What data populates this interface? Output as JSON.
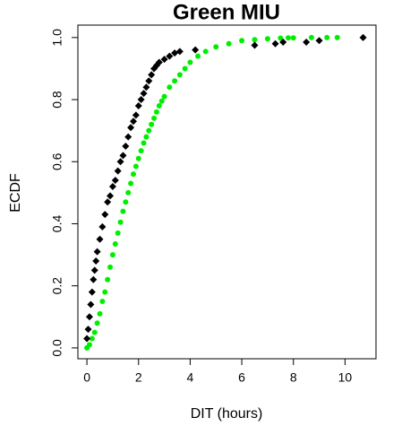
{
  "chart_data": {
    "type": "scatter",
    "title": "Green MIU",
    "xlabel": "DIT (hours)",
    "ylabel": "ECDF",
    "xlim": [
      -0.35,
      11.2
    ],
    "ylim": [
      -0.035,
      1.04
    ],
    "xticks": [
      0,
      2,
      4,
      6,
      8,
      10
    ],
    "yticks": [
      {
        "value": 0,
        "label": "0.0"
      },
      0.2,
      0.4,
      0.6,
      0.8,
      {
        "value": 1,
        "label": "1.0"
      }
    ],
    "series": [
      {
        "color": "#00ee00",
        "marker": "circle",
        "x": [
          0,
          0.1,
          0.2,
          0.3,
          0.4,
          0.5,
          0.6,
          0.7,
          0.8,
          0.9,
          1.0,
          1.1,
          1.2,
          1.3,
          1.4,
          1.5,
          1.6,
          1.7,
          1.8,
          1.9,
          2.0,
          2.1,
          2.2,
          2.3,
          2.4,
          2.5,
          2.6,
          2.7,
          2.8,
          2.9,
          3.0,
          3.2,
          3.4,
          3.6,
          3.8,
          4.0,
          4.3,
          4.6,
          5.0,
          5.5,
          6.0,
          6.5,
          7.0,
          7.5,
          7.8,
          8.0,
          8.7,
          9.3,
          9.7
        ],
        "values": [
          0,
          0.01,
          0.03,
          0.05,
          0.08,
          0.11,
          0.15,
          0.18,
          0.22,
          0.26,
          0.3,
          0.335,
          0.37,
          0.405,
          0.44,
          0.47,
          0.5,
          0.53,
          0.56,
          0.585,
          0.61,
          0.635,
          0.66,
          0.68,
          0.7,
          0.72,
          0.74,
          0.76,
          0.78,
          0.795,
          0.81,
          0.84,
          0.86,
          0.88,
          0.9,
          0.92,
          0.94,
          0.955,
          0.97,
          0.98,
          0.99,
          0.993,
          0.996,
          0.998,
          0.999,
          0.999,
          1.0,
          1.0,
          1.0
        ]
      },
      {
        "color": "#000000",
        "marker": "diamond",
        "x": [
          0.0,
          0.05,
          0.1,
          0.15,
          0.2,
          0.25,
          0.3,
          0.35,
          0.4,
          0.5,
          0.6,
          0.7,
          0.8,
          0.9,
          1.0,
          1.1,
          1.2,
          1.3,
          1.4,
          1.5,
          1.6,
          1.7,
          1.8,
          1.9,
          2.0,
          2.1,
          2.2,
          2.3,
          2.4,
          2.5,
          2.6,
          2.7,
          2.8,
          3.0,
          3.2,
          3.4,
          3.6,
          4.2,
          6.5,
          7.3,
          7.6,
          8.5,
          9.0,
          10.7
        ],
        "values": [
          0.03,
          0.06,
          0.1,
          0.14,
          0.18,
          0.22,
          0.25,
          0.28,
          0.31,
          0.35,
          0.39,
          0.43,
          0.47,
          0.49,
          0.52,
          0.54,
          0.57,
          0.6,
          0.62,
          0.65,
          0.68,
          0.71,
          0.73,
          0.75,
          0.78,
          0.8,
          0.82,
          0.84,
          0.86,
          0.88,
          0.9,
          0.91,
          0.92,
          0.93,
          0.94,
          0.95,
          0.955,
          0.96,
          0.975,
          0.98,
          0.985,
          0.985,
          0.99,
          1.0
        ]
      }
    ]
  }
}
